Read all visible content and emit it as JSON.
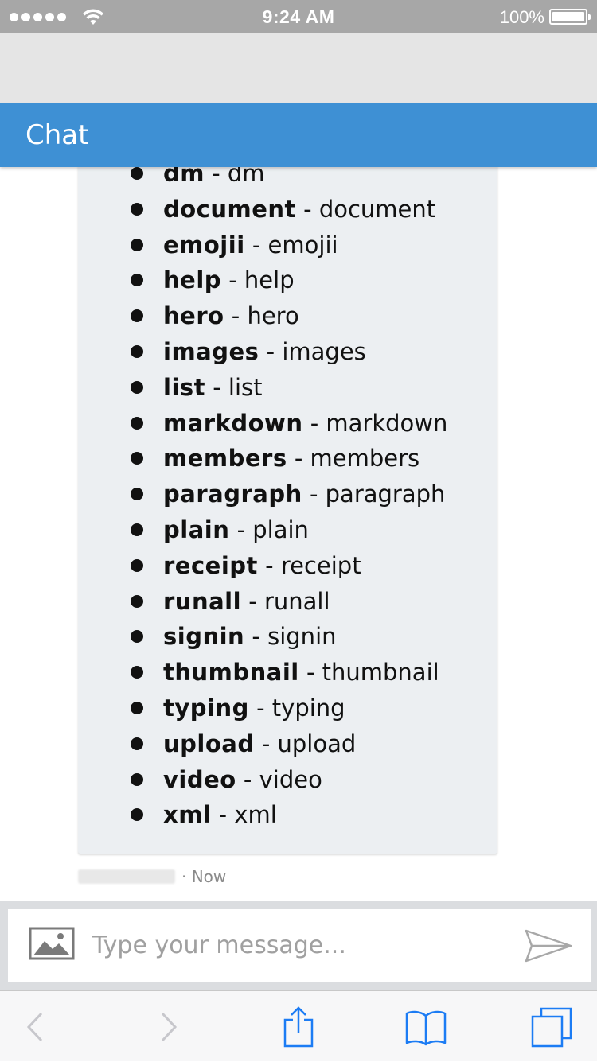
{
  "status_bar": {
    "time": "9:24 AM",
    "battery_percent": "100%",
    "signal_dots": 5
  },
  "header": {
    "title": "Chat"
  },
  "message": {
    "commands": [
      {
        "name": "dm",
        "desc": "dm"
      },
      {
        "name": "document",
        "desc": "document"
      },
      {
        "name": "emojii",
        "desc": "emojii"
      },
      {
        "name": "help",
        "desc": "help"
      },
      {
        "name": "hero",
        "desc": "hero"
      },
      {
        "name": "images",
        "desc": "images"
      },
      {
        "name": "list",
        "desc": "list"
      },
      {
        "name": "markdown",
        "desc": "markdown"
      },
      {
        "name": "members",
        "desc": "members"
      },
      {
        "name": "paragraph",
        "desc": "paragraph"
      },
      {
        "name": "plain",
        "desc": "plain"
      },
      {
        "name": "receipt",
        "desc": "receipt"
      },
      {
        "name": "runall",
        "desc": "runall"
      },
      {
        "name": "signin",
        "desc": "signin"
      },
      {
        "name": "thumbnail",
        "desc": "thumbnail"
      },
      {
        "name": "typing",
        "desc": "typing"
      },
      {
        "name": "upload",
        "desc": "upload"
      },
      {
        "name": "video",
        "desc": "video"
      },
      {
        "name": "xml",
        "desc": "xml"
      }
    ],
    "timestamp": "· Now"
  },
  "composer": {
    "placeholder": "Type your message..."
  },
  "icons": {
    "image": "image-icon",
    "send": "send-icon",
    "back": "chevron-left-icon",
    "forward": "chevron-right-icon",
    "share": "share-icon",
    "bookmarks": "book-icon",
    "tabs": "tabs-icon"
  },
  "colors": {
    "header_bg": "#3e90d4",
    "bubble_bg": "#eceff2",
    "status_bar_bg": "#a7a7a7",
    "toolbar_icon": "#1c7cf4"
  }
}
